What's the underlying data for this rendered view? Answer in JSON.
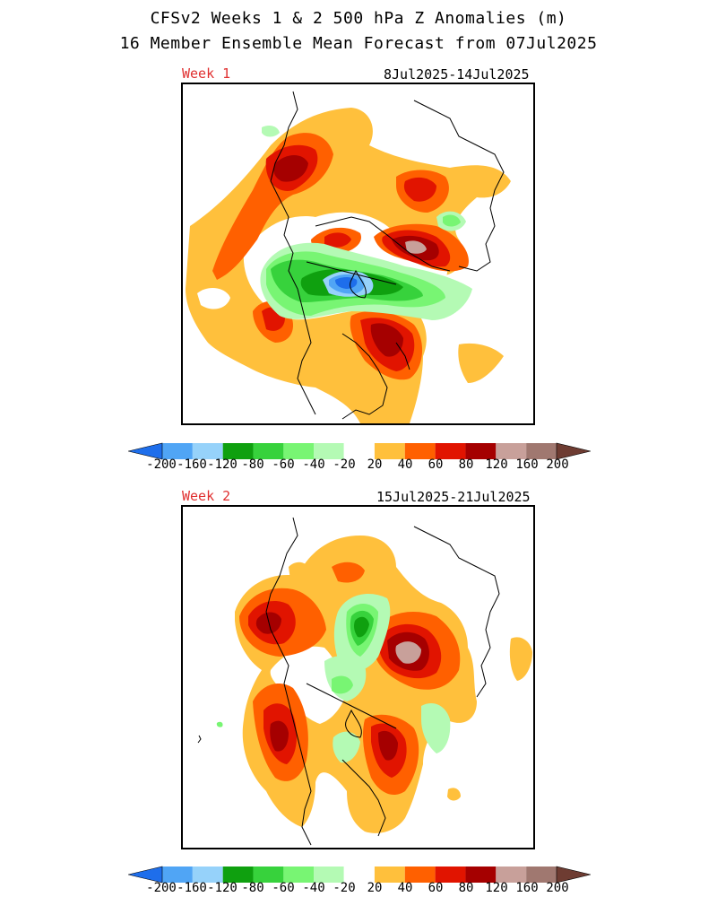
{
  "header": {
    "title_line1": "CFSv2 Weeks 1 & 2 500 hPa Z Anomalies (m)",
    "title_line2": "16 Member Ensemble Mean Forecast from 07Jul2025"
  },
  "panels": [
    {
      "week_label": "Week 1",
      "date_range": "8Jul2025-14Jul2025"
    },
    {
      "week_label": "Week 2",
      "date_range": "15Jul2025-21Jul2025"
    }
  ],
  "colorbar": {
    "colors": [
      "#1e6eeb",
      "#50a5f5",
      "#96d2fa",
      "#0fa00f",
      "#37d23c",
      "#78f573",
      "#b4fab4",
      "#ffffff",
      "#ffc03c",
      "#ff6000",
      "#e11400",
      "#a50000",
      "#c8a09a",
      "#a07870",
      "#6e3c32"
    ],
    "tick_labels": [
      "-200",
      "-160",
      "-120",
      "-80",
      "-60",
      "-40",
      "-20",
      "20",
      "40",
      "60",
      "80",
      "120",
      "160",
      "200"
    ]
  },
  "palette": {
    "pos20": "#ffc03c",
    "pos40": "#ff6000",
    "pos60": "#e11400",
    "pos80": "#a50000",
    "pos120": "#c8a09a",
    "neg20": "#b4fab4",
    "neg40": "#78f573",
    "neg60": "#37d23c",
    "neg80": "#0fa00f",
    "neg120": "#96d2fa",
    "neg160": "#50a5f5",
    "neg200": "#1e6eeb"
  }
}
